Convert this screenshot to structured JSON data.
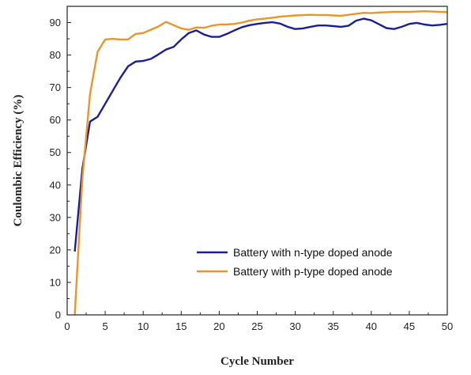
{
  "chart_data": {
    "type": "line",
    "title": "",
    "xlabel": "Cycle Number",
    "ylabel": "Coulombic Efficiency (%)",
    "xlim": [
      0,
      50
    ],
    "ylim": [
      0,
      95
    ],
    "x_ticks": [
      0,
      5,
      10,
      15,
      20,
      25,
      30,
      35,
      40,
      45,
      50
    ],
    "y_ticks": [
      0,
      10,
      20,
      30,
      40,
      50,
      60,
      70,
      80,
      90
    ],
    "grid": false,
    "legend_position": "bottom-right",
    "series": [
      {
        "name": "Battery with n-type doped anode",
        "color": "#1a1f96",
        "x": [
          1,
          2,
          3,
          4,
          5,
          6,
          7,
          8,
          9,
          10,
          11,
          12,
          13,
          14,
          15,
          16,
          17,
          18,
          19,
          20,
          21,
          22,
          23,
          24,
          25,
          26,
          27,
          28,
          29,
          30,
          31,
          32,
          33,
          34,
          35,
          36,
          37,
          38,
          39,
          40,
          41,
          42,
          43,
          44,
          45,
          46,
          47,
          48,
          49,
          50
        ],
        "y": [
          19.5,
          45,
          59.5,
          61,
          65,
          69,
          73,
          76.5,
          78,
          78.2,
          78.8,
          80.2,
          81.7,
          82.5,
          84.8,
          86.8,
          87.6,
          86.3,
          85.6,
          85.6,
          86.5,
          87.6,
          88.6,
          89.2,
          89.6,
          89.9,
          90.1,
          89.7,
          88.7,
          88,
          88.2,
          88.7,
          89.1,
          89.1,
          88.9,
          88.7,
          89,
          90.6,
          91.2,
          90.7,
          89.5,
          88.3,
          88,
          88.7,
          89.6,
          89.9,
          89.4,
          89.1,
          89.3,
          89.6
        ]
      },
      {
        "name": "Battery with p-type doped anode",
        "color": "#e8962c",
        "x": [
          1,
          2,
          3,
          4,
          5,
          6,
          7,
          8,
          9,
          10,
          11,
          12,
          13,
          14,
          15,
          16,
          17,
          18,
          19,
          20,
          21,
          22,
          23,
          24,
          25,
          26,
          27,
          28,
          29,
          30,
          31,
          32,
          33,
          34,
          35,
          36,
          37,
          38,
          39,
          40,
          41,
          42,
          43,
          44,
          45,
          46,
          47,
          48,
          49,
          50
        ],
        "y": [
          0,
          42,
          68,
          81,
          84.8,
          85,
          84.8,
          84.8,
          86.5,
          86.8,
          87.8,
          88.8,
          90.2,
          89.2,
          88.2,
          87.8,
          88.5,
          88.4,
          89,
          89.4,
          89.4,
          89.6,
          90,
          90.6,
          91,
          91.2,
          91.5,
          91.8,
          92,
          92.2,
          92.3,
          92.4,
          92.3,
          92.3,
          92.2,
          92.1,
          92.4,
          92.7,
          93,
          92.9,
          93.1,
          93.2,
          93.3,
          93.3,
          93.3,
          93.4,
          93.5,
          93.4,
          93.3,
          93.2
        ]
      }
    ]
  }
}
